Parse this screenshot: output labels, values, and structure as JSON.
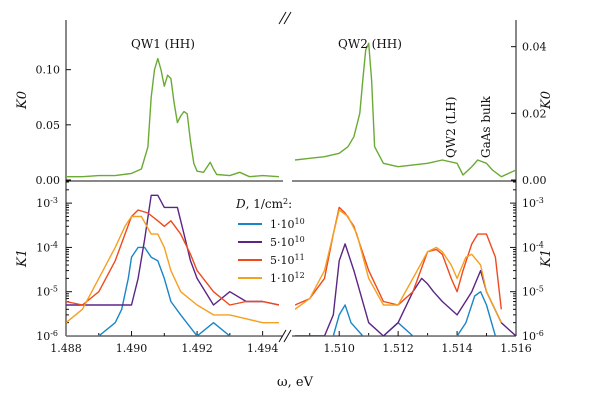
{
  "chart_data": {
    "type": "line",
    "xlabel": "ω, eV",
    "x_ticks_left": [
      "1.488",
      "1.490",
      "1.492",
      "1.494"
    ],
    "x_ticks_right": [
      "1.510",
      "1.512",
      "1.514",
      "1.516"
    ],
    "xlim_left": [
      1.488,
      1.4945
    ],
    "xlim_right": [
      1.5085,
      1.516
    ],
    "x_axis_broken": true,
    "top": {
      "ylabel_left": "K0",
      "ylabel_right": "K0",
      "y_ticks_left": [
        "0.00",
        "0.05",
        "0.10"
      ],
      "y_ticks_right": [
        "0.00",
        "0.02",
        "0.04"
      ],
      "ylim_left": [
        0,
        0.145
      ],
      "ylim_right": [
        0,
        0.048
      ],
      "annotations": [
        "QW1 (HH)",
        "QW2 (HH)",
        "QW2 (LH)",
        "GaAs bulk"
      ],
      "color": "#6aaa35",
      "series_left": {
        "x": [
          1.488,
          1.4885,
          1.489,
          1.4895,
          1.49,
          1.4903,
          1.4905,
          1.4906,
          1.4907,
          1.4908,
          1.4909,
          1.491,
          1.4911,
          1.4912,
          1.4913,
          1.4914,
          1.4915,
          1.4916,
          1.4917,
          1.4918,
          1.4919,
          1.492,
          1.4922,
          1.4924,
          1.4925,
          1.4926,
          1.493,
          1.4933,
          1.4936,
          1.494,
          1.4945
        ],
        "y": [
          0.003,
          0.003,
          0.004,
          0.004,
          0.006,
          0.01,
          0.03,
          0.075,
          0.1,
          0.11,
          0.1,
          0.085,
          0.095,
          0.092,
          0.07,
          0.052,
          0.058,
          0.062,
          0.06,
          0.035,
          0.015,
          0.008,
          0.007,
          0.016,
          0.01,
          0.005,
          0.004,
          0.007,
          0.003,
          0.004,
          0.003
        ]
      },
      "series_right": {
        "x": [
          1.5085,
          1.509,
          1.5095,
          1.51,
          1.5103,
          1.5105,
          1.5107,
          1.5108,
          1.5109,
          1.511,
          1.5111,
          1.5112,
          1.5115,
          1.512,
          1.513,
          1.5135,
          1.514,
          1.5142,
          1.5145,
          1.5147,
          1.515,
          1.5152,
          1.5155,
          1.516
        ],
        "y": [
          0.006,
          0.0065,
          0.007,
          0.008,
          0.01,
          0.013,
          0.02,
          0.03,
          0.039,
          0.041,
          0.03,
          0.01,
          0.005,
          0.004,
          0.005,
          0.006,
          0.005,
          0.0015,
          0.004,
          0.006,
          0.005,
          0.003,
          0.001,
          0.003
        ]
      }
    },
    "bottom": {
      "ylabel_left": "K1",
      "ylabel_right": "K1",
      "y_scale": "log",
      "y_ticks": [
        "10^-6",
        "10^-5",
        "10^-4",
        "10^-3"
      ],
      "ylim": [
        1e-06,
        0.003
      ],
      "legend_title": "D, 1/cm²:",
      "legend_placement": "center",
      "series": [
        {
          "name": "1·10^10",
          "color": "#1a86c8",
          "x": [
            1.488,
            1.4885,
            1.489,
            1.4895,
            1.4897,
            1.4899,
            1.49,
            1.4902,
            1.4904,
            1.4906,
            1.4908,
            1.491,
            1.4912,
            1.4915,
            1.492,
            1.4925,
            1.493,
            1.4935,
            1.494,
            1.4945,
            1.5085,
            1.5095,
            1.5098,
            1.51,
            1.5102,
            1.5104,
            1.5108,
            1.5115,
            1.512,
            1.5125,
            1.513,
            1.5135,
            1.514,
            1.5143,
            1.5146,
            1.5148,
            1.515,
            1.5153,
            1.5155
          ],
          "y": [
            1e-06,
            1e-06,
            1e-06,
            2e-06,
            4e-06,
            2e-05,
            6e-05,
            0.0001,
            0.0001,
            6e-05,
            5e-05,
            2e-05,
            6e-06,
            3e-06,
            1e-06,
            2e-06,
            1e-06,
            1e-06,
            1e-06,
            1e-06,
            1e-06,
            1e-06,
            1e-06,
            3e-06,
            5e-06,
            2e-06,
            1e-06,
            1e-06,
            2e-06,
            1e-06,
            1e-06,
            1e-06,
            1e-06,
            2e-06,
            8e-06,
            1e-05,
            5e-06,
            1e-06,
            1e-06
          ]
        },
        {
          "name": "5·10^10",
          "color": "#5b2585",
          "x": [
            1.488,
            1.4885,
            1.489,
            1.4895,
            1.49,
            1.4902,
            1.4904,
            1.4906,
            1.4908,
            1.491,
            1.4912,
            1.4914,
            1.4916,
            1.4918,
            1.492,
            1.4925,
            1.493,
            1.4935,
            1.494,
            1.4945,
            1.5085,
            1.509,
            1.5095,
            1.5098,
            1.51,
            1.5102,
            1.5105,
            1.511,
            1.5115,
            1.512,
            1.5125,
            1.5128,
            1.513,
            1.5132,
            1.5135,
            1.514,
            1.5145,
            1.5148,
            1.515,
            1.5155,
            1.516
          ],
          "y": [
            5e-06,
            5e-06,
            5e-06,
            5e-06,
            5e-06,
            2e-05,
            0.00015,
            0.0015,
            0.0015,
            0.0008,
            0.0008,
            0.0008,
            0.0002,
            5e-05,
            2e-05,
            5e-06,
            1e-05,
            6e-06,
            6e-06,
            5e-06,
            1e-06,
            1e-06,
            1e-06,
            3e-06,
            5e-05,
            0.00012,
            3e-05,
            2e-06,
            1e-06,
            2e-06,
            1e-05,
            2e-05,
            1.5e-05,
            1e-05,
            6e-06,
            3e-06,
            1e-05,
            3e-05,
            1e-05,
            2e-06,
            1e-06
          ]
        },
        {
          "name": "5·10^11",
          "color": "#ef4a1e",
          "x": [
            1.488,
            1.4885,
            1.489,
            1.4895,
            1.4898,
            1.49,
            1.4902,
            1.4905,
            1.4908,
            1.491,
            1.4912,
            1.4915,
            1.4918,
            1.492,
            1.4925,
            1.493,
            1.4935,
            1.494,
            1.4945,
            1.5085,
            1.509,
            1.5095,
            1.5098,
            1.51,
            1.5102,
            1.5105,
            1.511,
            1.5115,
            1.512,
            1.5125,
            1.513,
            1.5133,
            1.5135,
            1.5138,
            1.514,
            1.5142,
            1.5145,
            1.5147,
            1.515,
            1.5153,
            1.5155
          ],
          "y": [
            6e-06,
            5e-06,
            1e-05,
            5e-05,
            0.0002,
            0.0005,
            0.0007,
            0.0006,
            0.0004,
            0.0003,
            0.0004,
            0.0002,
            7e-05,
            3e-05,
            1e-05,
            5e-06,
            6e-06,
            6e-06,
            5e-06,
            5e-06,
            7e-06,
            2e-05,
            0.0002,
            0.0008,
            0.0006,
            0.0003,
            3e-05,
            6e-06,
            5e-06,
            1e-05,
            8e-05,
            9e-05,
            7e-05,
            2e-05,
            1e-05,
            3e-05,
            0.00012,
            0.0002,
            0.0002,
            6e-05,
            4e-06
          ]
        },
        {
          "name": "1·10^12",
          "color": "#f4a020",
          "x": [
            1.488,
            1.4885,
            1.489,
            1.4895,
            1.4898,
            1.49,
            1.4903,
            1.4906,
            1.4908,
            1.491,
            1.4912,
            1.4915,
            1.492,
            1.4925,
            1.493,
            1.494,
            1.4945,
            1.5085,
            1.509,
            1.5095,
            1.5098,
            1.51,
            1.5103,
            1.5106,
            1.511,
            1.5115,
            1.512,
            1.5125,
            1.513,
            1.5133,
            1.5135,
            1.5138,
            1.514,
            1.5143,
            1.5145,
            1.5148,
            1.515,
            1.5155
          ],
          "y": [
            2e-06,
            4e-06,
            2e-05,
            0.0001,
            0.0003,
            0.0005,
            0.0005,
            0.0002,
            0.0002,
            0.0001,
            3e-05,
            1e-05,
            5e-06,
            3e-06,
            3e-06,
            2e-06,
            2e-06,
            4e-06,
            7e-06,
            3e-05,
            0.0002,
            0.0007,
            0.0005,
            0.0002,
            2e-05,
            5e-06,
            5e-06,
            2e-05,
            8e-05,
            0.0001,
            8e-05,
            4e-05,
            2e-05,
            6e-05,
            7e-05,
            4e-05,
            1e-05,
            2e-06
          ]
        }
      ]
    }
  }
}
